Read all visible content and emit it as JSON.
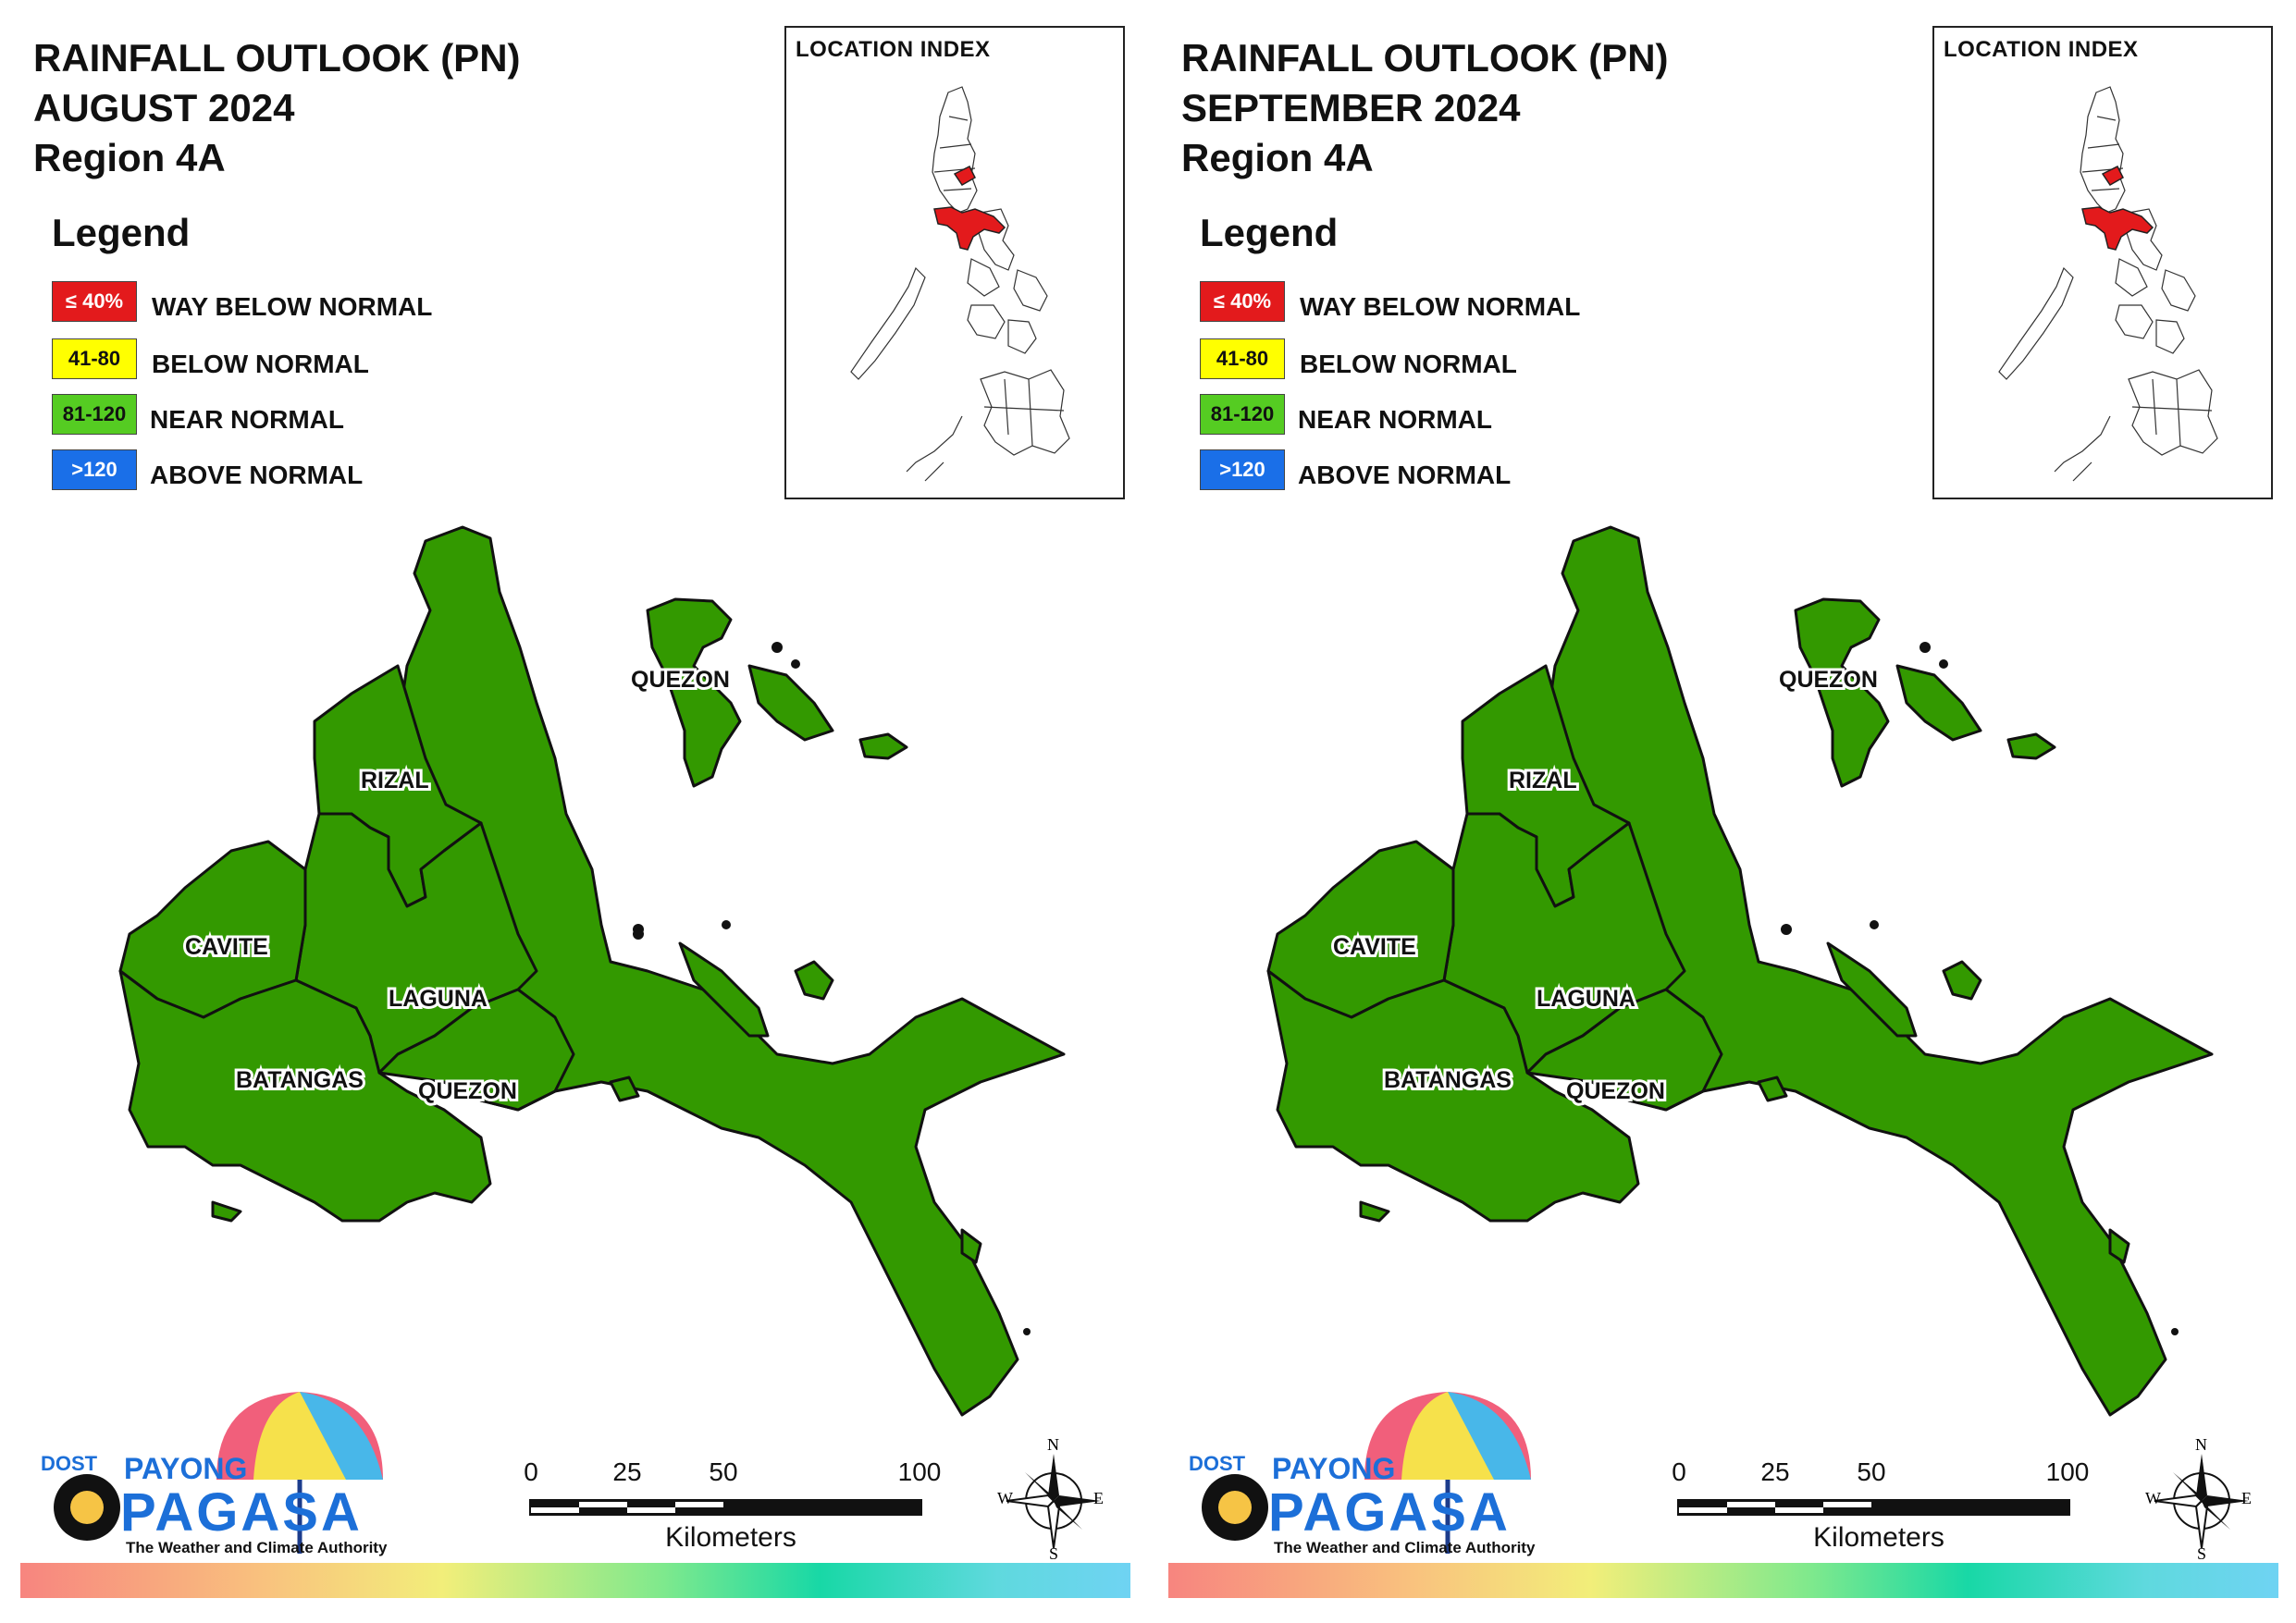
{
  "panels": [
    {
      "title": [
        "RAINFALL OUTLOOK (PN)",
        "AUGUST 2024",
        "Region 4A"
      ],
      "category": "NEAR NORMAL"
    },
    {
      "title": [
        "RAINFALL OUTLOOK (PN)",
        "SEPTEMBER 2024",
        "Region 4A"
      ],
      "category": "NEAR NORMAL"
    }
  ],
  "legend": {
    "title": "Legend",
    "items": [
      {
        "range": "≤ 40%",
        "label": "WAY BELOW NORMAL",
        "color": "#e31a1c",
        "text_color": "#ffffff"
      },
      {
        "range": "41-80",
        "label": "BELOW NORMAL",
        "color": "#ffff00",
        "text_color": "#111111"
      },
      {
        "range": "81-120",
        "label": "NEAR NORMAL",
        "color": "#55cc22",
        "text_color": "#111111"
      },
      {
        "range": ">120",
        "label": "ABOVE NORMAL",
        "color": "#1a6fe8",
        "text_color": "#ffffff"
      }
    ]
  },
  "location_index": {
    "title": "LOCATION INDEX",
    "highlight_color": "#e31a1c"
  },
  "provinces": [
    "QUEZON",
    "RIZAL",
    "CAVITE",
    "LAGUNA",
    "BATANGAS",
    "QUEZON"
  ],
  "map_fill_color": "#339900",
  "scale_bar": {
    "ticks": [
      "0",
      "25",
      "50",
      "100"
    ],
    "unit": "Kilometers"
  },
  "compass": {
    "n": "N",
    "s": "S",
    "e": "E",
    "w": "W"
  },
  "logo": {
    "dost": "DOST",
    "payong": "PAYONG",
    "pagasa": "PAGASA",
    "tagline": "The Weather and Climate Authority"
  }
}
